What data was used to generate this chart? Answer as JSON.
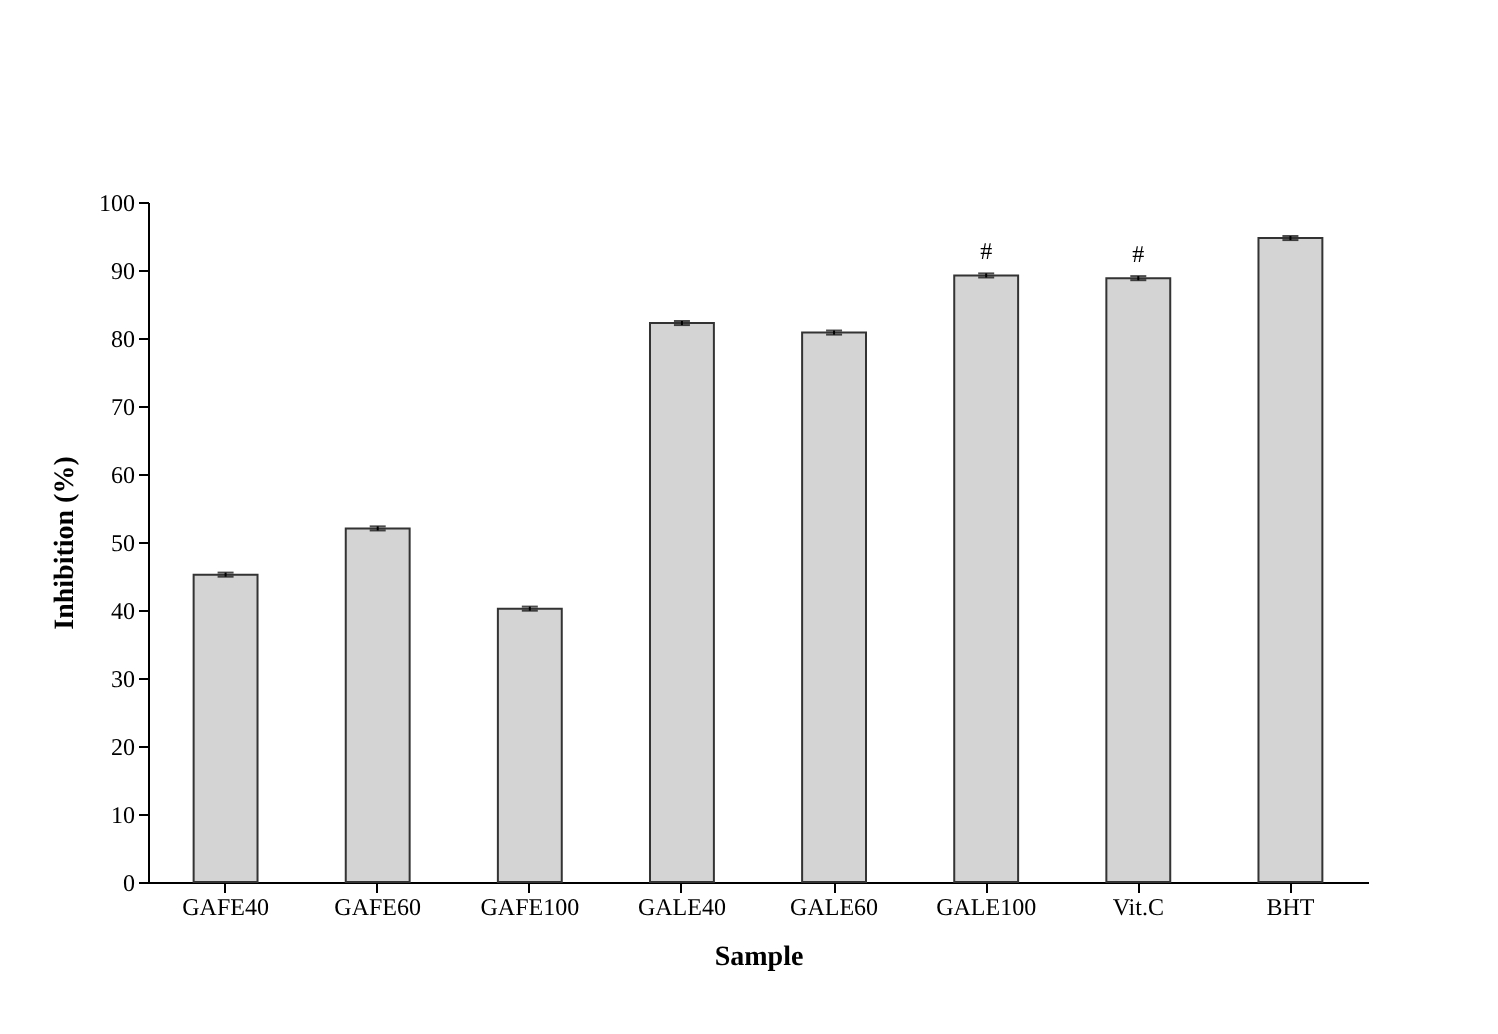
{
  "chart_data": {
    "type": "bar",
    "xlabel": "Sample",
    "ylabel": "Inhibition (%)",
    "categories": [
      "GAFE40",
      "GAFE60",
      "GAFE100",
      "GALE40",
      "GALE60",
      "GALE100",
      "Vit.C",
      "BHT"
    ],
    "values": [
      45.2,
      52.0,
      40.2,
      82.2,
      80.8,
      89.2,
      88.8,
      94.7
    ],
    "errors": [
      0.3,
      0.3,
      0.3,
      0.3,
      0.3,
      0.3,
      0.3,
      0.3
    ],
    "color": "#d4d4d4",
    "ylim": [
      0,
      100
    ],
    "yticks": [
      0,
      10,
      20,
      30,
      40,
      50,
      60,
      70,
      80,
      90,
      100
    ],
    "grid": false,
    "annotations": [
      {
        "text": "#",
        "x": "GALE100",
        "y": 89.2
      },
      {
        "text": "#",
        "x": "Vit.C",
        "y": 88.8
      }
    ]
  }
}
